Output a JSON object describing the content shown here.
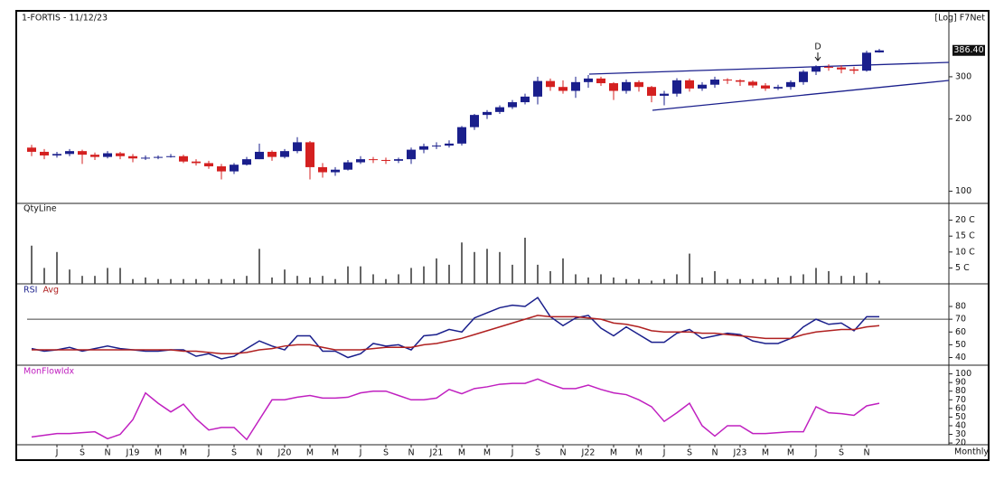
{
  "chart_data": [
    {
      "type": "candlestick",
      "title": "1-FORTIS - 11/12/23",
      "scale_label": "[Log] F7Net",
      "log_scale": true,
      "annotation": "D",
      "up_color": "#1a1f8c",
      "down_color": "#d42020",
      "open": [
        152,
        146,
        141,
        143,
        147,
        142,
        139,
        144,
        140,
        137,
        138,
        139,
        140,
        133,
        131,
        127,
        121,
        129,
        136,
        146,
        139,
        147,
        160,
        126,
        120,
        123,
        132,
        136,
        135,
        134,
        136,
        149,
        154,
        155,
        158,
        185,
        208,
        214,
        224,
        235,
        248,
        288,
        272,
        262,
        285,
        295,
        282,
        262,
        285,
        272,
        250,
        255,
        290,
        268,
        278,
        292,
        290,
        286,
        276,
        268,
        272,
        285,
        315,
        330,
        328,
        322,
        318,
        379
      ],
      "high": [
        156,
        150,
        146,
        150,
        149,
        145,
        147,
        146,
        143,
        141,
        141,
        143,
        142,
        136,
        134,
        130,
        131,
        139,
        158,
        148,
        150,
        168,
        162,
        131,
        126,
        135,
        140,
        139,
        138,
        138,
        152,
        158,
        160,
        163,
        187,
        210,
        218,
        228,
        240,
        255,
        300,
        295,
        290,
        300,
        305,
        300,
        285,
        292,
        290,
        275,
        262,
        296,
        295,
        285,
        300,
        296,
        293,
        290,
        282,
        278,
        290,
        320,
        335,
        338,
        335,
        330,
        385,
        392
      ],
      "low": [
        140,
        136,
        138,
        140,
        130,
        135,
        137,
        136,
        132,
        135,
        136,
        138,
        131,
        128,
        124,
        112,
        118,
        128,
        136,
        134,
        137,
        144,
        112,
        114,
        116,
        122,
        130,
        131,
        130,
        131,
        130,
        144,
        150,
        152,
        155,
        180,
        200,
        210,
        220,
        230,
        230,
        262,
        255,
        245,
        270,
        275,
        240,
        255,
        260,
        235,
        228,
        248,
        260,
        262,
        270,
        280,
        275,
        270,
        262,
        264,
        265,
        278,
        305,
        318,
        310,
        308,
        315,
        378
      ],
      "close": [
        146,
        141,
        143,
        147,
        142,
        139,
        144,
        140,
        137,
        138,
        139,
        140,
        133,
        131,
        127,
        121,
        129,
        136,
        146,
        139,
        147,
        160,
        126,
        120,
        123,
        132,
        136,
        135,
        134,
        136,
        149,
        154,
        155,
        158,
        185,
        208,
        214,
        224,
        235,
        248,
        288,
        272,
        262,
        285,
        295,
        282,
        262,
        285,
        272,
        250,
        255,
        290,
        268,
        278,
        292,
        290,
        286,
        276,
        268,
        272,
        285,
        315,
        330,
        328,
        322,
        318,
        378,
        386.4
      ],
      "last_price": {
        "value": 386.4,
        "label": "386.40"
      },
      "ylim": [
        89,
        555
      ],
      "yticks": [
        100,
        200,
        300
      ]
    },
    {
      "type": "bar",
      "title": "QtyLine",
      "color": "#333333",
      "values": [
        12,
        5,
        10,
        4.5,
        2.5,
        2.5,
        5,
        5,
        1.5,
        2,
        1.5,
        1.5,
        1.5,
        1.5,
        1.5,
        1.5,
        1.5,
        2.5,
        11,
        2,
        4.5,
        2.5,
        2,
        2.5,
        1.5,
        5.5,
        5.5,
        3,
        1.5,
        3,
        5,
        5.5,
        8,
        6,
        13,
        10,
        11,
        10,
        6,
        14.5,
        6,
        4,
        8,
        3,
        2,
        3,
        2,
        1.5,
        1.5,
        1,
        1.5,
        3,
        9.5,
        2,
        4,
        1.5,
        1.5,
        1.5,
        1.5,
        2,
        2.5,
        3,
        5,
        4,
        2.5,
        2.5,
        3.5,
        1
      ],
      "ylim": [
        0,
        25
      ],
      "yticks": [
        {
          "value": 5,
          "label": "5 C"
        },
        {
          "value": 10,
          "label": "10 C"
        },
        {
          "value": 15,
          "label": "15 C"
        },
        {
          "value": 20,
          "label": "20 C"
        }
      ]
    },
    {
      "type": "line",
      "ref_lines": [
        70
      ],
      "series": [
        {
          "name": "RSI",
          "color": "#1a1f8c",
          "values": [
            47,
            45,
            46,
            48,
            45,
            47,
            49,
            47,
            46,
            45,
            45,
            46,
            46,
            41,
            43,
            39,
            41,
            47,
            53,
            49,
            46,
            57,
            57,
            45,
            45,
            40,
            43,
            51,
            49,
            50,
            46,
            57,
            58,
            62,
            60,
            71,
            75,
            79,
            81,
            80,
            87,
            72,
            65,
            71,
            73,
            63,
            57,
            64,
            58,
            52,
            52,
            59,
            62,
            55,
            57,
            59,
            58,
            53,
            51,
            51,
            55,
            64,
            70,
            66,
            67,
            61,
            72,
            72
          ]
        },
        {
          "name": "Avg",
          "color": "#b02020",
          "values": [
            46,
            46,
            46,
            46,
            46,
            46,
            46,
            46,
            46,
            46,
            46,
            46,
            45,
            45,
            44,
            43,
            43,
            44,
            46,
            47,
            49,
            50,
            50,
            48,
            46,
            46,
            46,
            47,
            48,
            48,
            48,
            50,
            51,
            53,
            55,
            58,
            61,
            64,
            67,
            70,
            73,
            72,
            72,
            72,
            71,
            70,
            67,
            66,
            64,
            61,
            60,
            60,
            60,
            59,
            59,
            58,
            57,
            56,
            55,
            55,
            55,
            58,
            60,
            61,
            62,
            62,
            64,
            65
          ]
        }
      ],
      "ylim": [
        34,
        97
      ],
      "yticks": [
        40,
        50,
        60,
        70,
        80
      ]
    },
    {
      "type": "line",
      "x_label": "Monthly",
      "categories": [
        null,
        null,
        "J",
        null,
        "S",
        null,
        "N",
        null,
        "J19",
        null,
        "M",
        null,
        "M",
        null,
        "J",
        null,
        "S",
        null,
        "N",
        null,
        "J20",
        null,
        "M",
        null,
        "M",
        null,
        "J",
        null,
        "S",
        null,
        "N",
        null,
        "J21",
        null,
        "M",
        null,
        "M",
        null,
        "J",
        null,
        "S",
        null,
        "N",
        null,
        "J22",
        null,
        "M",
        null,
        "M",
        null,
        "J",
        null,
        "S",
        null,
        "N",
        null,
        "J23",
        null,
        "M",
        null,
        "M",
        null,
        "J",
        null,
        "S",
        null,
        "N",
        null
      ],
      "series": [
        {
          "name": "MonFlowIdx",
          "color": "#c020c0",
          "values": [
            27,
            29,
            31,
            31,
            32,
            33,
            25,
            30,
            47,
            78,
            66,
            56,
            65,
            48,
            35,
            38,
            38,
            24,
            47,
            70,
            70,
            73,
            75,
            72,
            72,
            73,
            78,
            80,
            80,
            75,
            70,
            70,
            72,
            82,
            77,
            83,
            85,
            88,
            89,
            89,
            94,
            88,
            83,
            83,
            87,
            82,
            78,
            76,
            70,
            62,
            45,
            55,
            66,
            40,
            28,
            40,
            40,
            31,
            31,
            32,
            33,
            33,
            62,
            55,
            54,
            52,
            63,
            66
          ]
        }
      ],
      "ylim": [
        18,
        109
      ],
      "yticks": [
        20,
        30,
        40,
        50,
        60,
        70,
        80,
        90,
        100
      ]
    }
  ]
}
